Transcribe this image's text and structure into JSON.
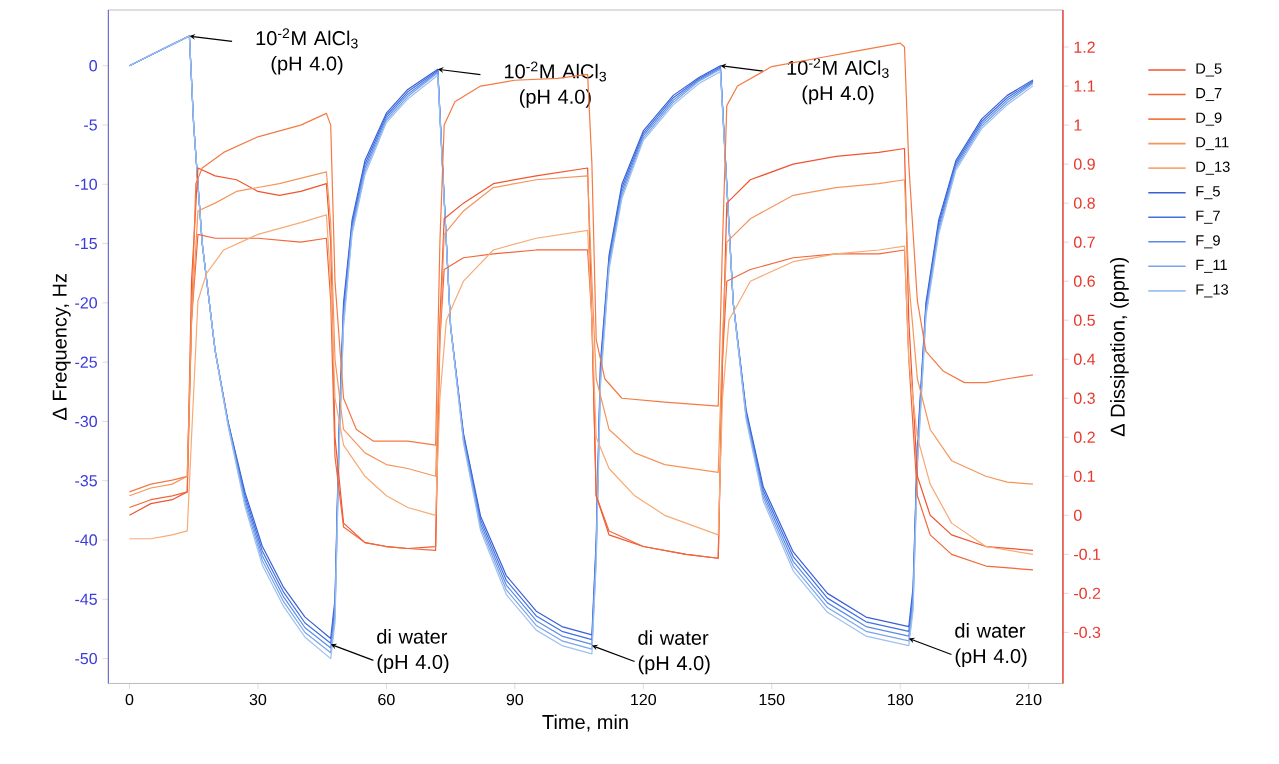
{
  "chart_data": {
    "type": "line",
    "xlabel": "Time, min",
    "ylabel": "Δ Frequency, Hz",
    "y2label": "Δ Dissipation, (ppm)",
    "xlim": [
      -5,
      218
    ],
    "xticks": [
      0,
      30,
      60,
      90,
      120,
      150,
      180,
      210
    ],
    "ylim": [
      -52.1,
      4.7
    ],
    "yticks": [
      -50,
      -45,
      -40,
      -35,
      -30,
      -25,
      -20,
      -15,
      -10,
      -5,
      0
    ],
    "y2lim": [
      -0.431,
      1.295
    ],
    "y2ticks": [
      -0.3,
      -0.2,
      -0.1,
      0,
      0.1,
      0.2,
      0.3,
      0.4,
      0.5,
      0.6,
      0.7,
      0.8,
      0.9,
      1,
      1.1,
      1.2
    ],
    "legend": "right",
    "marker": "none",
    "line_style": "solid",
    "annotations": [
      {
        "text": "10$^{-2}$M AlCl$_{3}$ (pH 4.0)",
        "x": 14,
        "y": 2.5
      },
      {
        "text": "10$^{-2}$M AlCl$_{3}$ (pH 4.0)",
        "x": 72,
        "y": -0.3
      },
      {
        "text": "10$^{-2}$M AlCl$_{3}$ (pH 4.0)",
        "x": 138,
        "y": 0
      },
      {
        "text": "di water (pH 4.0)",
        "x": 47,
        "y": -48.8
      },
      {
        "text": "di water (pH 4.0)",
        "x": 108,
        "y": -48.9
      },
      {
        "text": "di water (pH 4.0)",
        "x": 182,
        "y": -48.3
      }
    ],
    "series": [
      {
        "name": "D_5",
        "color": "#f0552f",
        "axis": "y2",
        "x": [
          0,
          5,
          10,
          13.5,
          14.5,
          16,
          20,
          25,
          30,
          35,
          40,
          46,
          47,
          48,
          50,
          55,
          60,
          65,
          71.5,
          72.5,
          73.5,
          78,
          85,
          95,
          107,
          108,
          109,
          112,
          120,
          130,
          137.5,
          138.5,
          139.5,
          145,
          155,
          165,
          175,
          181,
          182,
          184,
          187,
          192,
          200,
          211
        ],
        "values": [
          0.0,
          0.03,
          0.04,
          0.06,
          0.6,
          0.89,
          0.87,
          0.86,
          0.83,
          0.82,
          0.83,
          0.85,
          0.7,
          0.2,
          -0.02,
          -0.07,
          -0.08,
          -0.085,
          -0.08,
          0.5,
          0.76,
          0.8,
          0.85,
          0.87,
          0.89,
          0.5,
          0.05,
          -0.05,
          -0.08,
          -0.1,
          -0.11,
          0.4,
          0.8,
          0.86,
          0.9,
          0.92,
          0.93,
          0.94,
          0.5,
          0.1,
          0.0,
          -0.05,
          -0.08,
          -0.09
        ]
      },
      {
        "name": "D_7",
        "color": "#f2663a",
        "axis": "y2",
        "x": [
          0,
          5,
          10,
          13.5,
          14.5,
          16,
          20,
          30,
          40,
          46,
          47,
          48,
          50,
          55,
          60,
          65,
          71.5,
          72.5,
          73.5,
          78,
          85,
          95,
          107,
          108,
          109,
          112,
          120,
          130,
          137.5,
          138.5,
          139.5,
          145,
          155,
          165,
          175,
          181,
          182,
          184,
          187,
          192,
          200,
          211
        ],
        "values": [
          0.02,
          0.04,
          0.05,
          0.06,
          0.5,
          0.72,
          0.71,
          0.71,
          0.7,
          0.71,
          0.55,
          0.15,
          -0.03,
          -0.07,
          -0.08,
          -0.085,
          -0.09,
          0.45,
          0.63,
          0.66,
          0.67,
          0.68,
          0.68,
          0.5,
          0.05,
          -0.04,
          -0.08,
          -0.1,
          -0.11,
          0.4,
          0.6,
          0.63,
          0.66,
          0.67,
          0.67,
          0.68,
          0.4,
          0.05,
          -0.05,
          -0.1,
          -0.13,
          -0.14
        ]
      },
      {
        "name": "D_9",
        "color": "#f47a45",
        "axis": "y2",
        "x": [
          0,
          5,
          10,
          13.5,
          14.5,
          15.5,
          17,
          22,
          30,
          40,
          46,
          47,
          48,
          50,
          53,
          57,
          65,
          71.5,
          72.5,
          73.5,
          76,
          82,
          90,
          100,
          107,
          108,
          109,
          111,
          115,
          125,
          137.5,
          138.5,
          139.5,
          142,
          150,
          160,
          170,
          180,
          181,
          182,
          184,
          186,
          190,
          195,
          200,
          205,
          211
        ],
        "values": [
          0.06,
          0.08,
          0.09,
          0.1,
          0.5,
          0.85,
          0.89,
          0.93,
          0.97,
          1.0,
          1.03,
          1.0,
          0.6,
          0.3,
          0.22,
          0.19,
          0.19,
          0.18,
          0.7,
          1.0,
          1.06,
          1.1,
          1.115,
          1.12,
          1.13,
          0.9,
          0.45,
          0.35,
          0.3,
          0.29,
          0.28,
          0.7,
          1.05,
          1.1,
          1.15,
          1.17,
          1.19,
          1.21,
          1.2,
          0.9,
          0.55,
          0.42,
          0.37,
          0.34,
          0.34,
          0.35,
          0.36
        ]
      },
      {
        "name": "D_11",
        "color": "#f5955c",
        "axis": "y2",
        "x": [
          0,
          5,
          10,
          13.5,
          14.5,
          16,
          20,
          25,
          35,
          46,
          47,
          48,
          50,
          55,
          60,
          65,
          71.5,
          72.5,
          73.5,
          78,
          85,
          95,
          107,
          108,
          109,
          112,
          118,
          125,
          137.5,
          138.5,
          139.5,
          145,
          155,
          165,
          175,
          181,
          182,
          184,
          187,
          192,
          200,
          205,
          211
        ],
        "values": [
          0.05,
          0.07,
          0.08,
          0.1,
          0.5,
          0.78,
          0.8,
          0.83,
          0.85,
          0.88,
          0.75,
          0.4,
          0.22,
          0.16,
          0.13,
          0.12,
          0.1,
          0.45,
          0.72,
          0.78,
          0.84,
          0.86,
          0.87,
          0.6,
          0.35,
          0.22,
          0.16,
          0.13,
          0.11,
          0.45,
          0.7,
          0.76,
          0.82,
          0.84,
          0.85,
          0.86,
          0.6,
          0.35,
          0.22,
          0.14,
          0.1,
          0.085,
          0.08
        ]
      },
      {
        "name": "D_13",
        "color": "#f7aa75",
        "axis": "y2",
        "x": [
          0,
          5,
          10,
          13.5,
          14.5,
          16,
          18,
          22,
          30,
          40,
          46,
          47,
          48,
          50,
          55,
          60,
          65,
          71.5,
          72.5,
          74,
          78,
          85,
          95,
          107,
          108,
          109,
          112,
          118,
          125,
          137.5,
          138.5,
          140,
          145,
          155,
          165,
          175,
          181,
          182,
          184,
          187,
          192,
          200,
          211
        ],
        "values": [
          -0.06,
          -0.06,
          -0.05,
          -0.04,
          0.2,
          0.55,
          0.62,
          0.68,
          0.72,
          0.75,
          0.77,
          0.6,
          0.3,
          0.18,
          0.1,
          0.05,
          0.02,
          0.0,
          0.3,
          0.5,
          0.6,
          0.68,
          0.71,
          0.73,
          0.5,
          0.2,
          0.12,
          0.05,
          0.0,
          -0.05,
          0.3,
          0.5,
          0.6,
          0.65,
          0.67,
          0.68,
          0.69,
          0.4,
          0.2,
          0.08,
          -0.02,
          -0.08,
          -0.1
        ]
      },
      {
        "name": "F_5",
        "color": "#3a5fd8",
        "x": [
          0,
          5,
          10,
          14,
          15,
          17,
          20,
          23,
          27,
          31,
          36,
          41,
          47,
          48,
          49,
          50,
          52,
          55,
          60,
          65,
          72,
          75,
          78,
          82,
          88,
          95,
          101,
          108,
          109,
          110,
          112,
          115,
          120,
          127,
          133,
          138,
          141,
          144,
          148,
          155,
          163,
          172,
          182,
          183,
          184,
          186,
          189,
          193,
          199,
          205,
          211
        ],
        "values": [
          0,
          0.9,
          1.8,
          2.5,
          -5,
          -15,
          -24,
          -30,
          -36,
          -40.5,
          -44,
          -46.5,
          -48.3,
          -45,
          -30,
          -20,
          -13,
          -8,
          -4,
          -2,
          -0.3,
          -22,
          -31,
          -38,
          -43,
          -46,
          -47.3,
          -48,
          -40,
          -25,
          -16,
          -10,
          -5.5,
          -2.5,
          -1,
          0,
          -20,
          -29,
          -35.5,
          -41,
          -44.5,
          -46.5,
          -47.3,
          -44,
          -32,
          -20,
          -13,
          -8,
          -4.5,
          -2.5,
          -1.2
        ]
      },
      {
        "name": "F_7",
        "color": "#4170e0",
        "x": [
          0,
          5,
          10,
          14,
          15,
          17,
          20,
          23,
          27,
          31,
          36,
          41,
          47,
          48,
          49,
          50,
          52,
          55,
          60,
          65,
          72,
          75,
          78,
          82,
          88,
          95,
          101,
          108,
          109,
          110,
          112,
          115,
          120,
          127,
          133,
          138,
          141,
          144,
          148,
          155,
          163,
          172,
          182,
          183,
          184,
          186,
          189,
          193,
          199,
          205,
          211
        ],
        "values": [
          0,
          0.9,
          1.8,
          2.5,
          -5,
          -15,
          -24,
          -30,
          -36.3,
          -40.9,
          -44.4,
          -47,
          -48.7,
          -45.5,
          -30.5,
          -20.5,
          -13.3,
          -8.3,
          -4.2,
          -2.2,
          -0.4,
          -22,
          -31.2,
          -38.3,
          -43.4,
          -46.4,
          -47.7,
          -48.4,
          -40.5,
          -25.5,
          -16.3,
          -10.3,
          -5.7,
          -2.7,
          -1.1,
          -0.1,
          -20,
          -29.2,
          -35.8,
          -41.4,
          -44.9,
          -46.9,
          -47.7,
          -44.5,
          -32.5,
          -20.3,
          -13.3,
          -8.2,
          -4.7,
          -2.7,
          -1.3
        ]
      },
      {
        "name": "F_9",
        "color": "#5a8ae6",
        "x": [
          0,
          5,
          10,
          14,
          15,
          17,
          20,
          23,
          27,
          31,
          36,
          41,
          47,
          48,
          49,
          50,
          52,
          55,
          60,
          65,
          72,
          75,
          78,
          82,
          88,
          95,
          101,
          108,
          109,
          110,
          112,
          115,
          120,
          127,
          133,
          138,
          141,
          144,
          148,
          155,
          163,
          172,
          182,
          183,
          184,
          186,
          189,
          193,
          199,
          205,
          211
        ],
        "values": [
          0,
          0.9,
          1.8,
          2.5,
          -5,
          -15,
          -24,
          -30.1,
          -36.6,
          -41.3,
          -44.8,
          -47.4,
          -49.1,
          -46,
          -31,
          -21,
          -13.6,
          -8.6,
          -4.4,
          -2.4,
          -0.5,
          -22,
          -31.4,
          -38.6,
          -43.8,
          -46.8,
          -48.1,
          -48.8,
          -41,
          -26,
          -16.6,
          -10.6,
          -5.9,
          -2.9,
          -1.2,
          -0.2,
          -20,
          -29.4,
          -36.1,
          -41.8,
          -45.3,
          -47.3,
          -48.1,
          -45,
          -33,
          -20.6,
          -13.6,
          -8.4,
          -4.9,
          -2.9,
          -1.4
        ]
      },
      {
        "name": "F_11",
        "color": "#7aa3ea",
        "x": [
          0,
          5,
          10,
          14,
          15,
          17,
          20,
          23,
          27,
          31,
          36,
          41,
          47,
          48,
          49,
          50,
          52,
          55,
          60,
          65,
          72,
          75,
          78,
          82,
          88,
          95,
          101,
          108,
          109,
          110,
          112,
          115,
          120,
          127,
          133,
          138,
          141,
          144,
          148,
          155,
          163,
          172,
          182,
          183,
          184,
          186,
          189,
          193,
          199,
          205,
          211
        ],
        "values": [
          0,
          0.9,
          1.8,
          2.5,
          -5,
          -15,
          -24,
          -30.2,
          -36.9,
          -41.7,
          -45.2,
          -47.8,
          -49.5,
          -46.5,
          -31.5,
          -21.5,
          -13.9,
          -8.9,
          -4.6,
          -2.6,
          -0.6,
          -22,
          -31.6,
          -38.9,
          -44.2,
          -47.2,
          -48.5,
          -49.2,
          -41.5,
          -26.5,
          -16.9,
          -10.9,
          -6.1,
          -3.1,
          -1.3,
          -0.3,
          -20,
          -29.6,
          -36.4,
          -42.2,
          -45.7,
          -47.7,
          -48.5,
          -45.5,
          -33.5,
          -20.9,
          -13.9,
          -8.6,
          -5.1,
          -3.1,
          -1.5
        ]
      },
      {
        "name": "F_13",
        "color": "#9cc0f0",
        "x": [
          0,
          5,
          10,
          14,
          15,
          17,
          20,
          23,
          27,
          31,
          36,
          41,
          47,
          48,
          49,
          50,
          52,
          55,
          60,
          65,
          72,
          75,
          78,
          82,
          88,
          95,
          101,
          108,
          109,
          110,
          112,
          115,
          120,
          127,
          133,
          138,
          141,
          144,
          148,
          155,
          163,
          172,
          182,
          183,
          184,
          186,
          189,
          193,
          199,
          205,
          211
        ],
        "values": [
          0,
          0.9,
          1.8,
          2.5,
          -5,
          -15,
          -24,
          -30.3,
          -37.2,
          -42.1,
          -45.6,
          -48.2,
          -50,
          -47,
          -32,
          -22,
          -14.2,
          -9.2,
          -4.8,
          -2.8,
          -0.8,
          -22,
          -31.8,
          -39.2,
          -44.6,
          -47.6,
          -48.9,
          -49.6,
          -42,
          -27,
          -17.2,
          -11.2,
          -6.3,
          -3.3,
          -1.5,
          -0.5,
          -20,
          -29.8,
          -36.7,
          -42.6,
          -46.1,
          -48.1,
          -48.9,
          -46,
          -34,
          -21.2,
          -14.2,
          -8.8,
          -5.3,
          -3.3,
          -1.7
        ]
      }
    ]
  }
}
